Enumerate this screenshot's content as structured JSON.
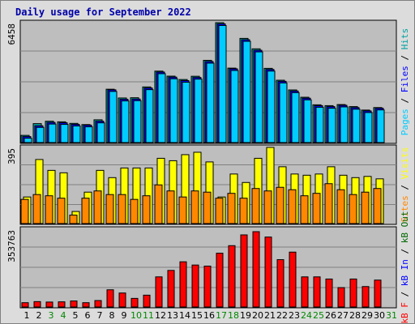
{
  "colors": {
    "title": "#0000aa",
    "panel_bg": "#bebebe",
    "grid": "#808080",
    "pages": "#00ccff",
    "files": "#0000ff",
    "hits": "#00a0a0",
    "sites": "#ff8800",
    "visits": "#ffff00",
    "kbf": "#ff0000",
    "kbin": "#0000ff",
    "kbout": "#006600",
    "weekend": "#008800",
    "weekday": "#000000"
  },
  "chart_data": {
    "type": "bar",
    "title": "Daily usage for September 2022",
    "categories": [
      "1",
      "2",
      "3",
      "4",
      "5",
      "6",
      "7",
      "8",
      "9",
      "10",
      "11",
      "12",
      "13",
      "14",
      "15",
      "16",
      "17",
      "18",
      "19",
      "20",
      "21",
      "22",
      "23",
      "24",
      "25",
      "26",
      "27",
      "28",
      "29",
      "30",
      "31"
    ],
    "weekend_days": [
      "3",
      "4",
      "10",
      "11",
      "17",
      "18",
      "24",
      "25",
      "31"
    ],
    "panels": [
      {
        "id": "top",
        "max_label": "6458",
        "max_value": 6458,
        "right_label": {
          "pages": "Pages",
          "sep1": " / ",
          "files": "Files",
          "sep2": " / ",
          "hits": "Hits"
        },
        "series": [
          {
            "name": "Hits",
            "values": [
              600,
              1580,
              1780,
              1730,
              1600,
              1500,
              1900,
              4450,
              3720,
              3740,
              4640,
              5960,
              5540,
              5260,
              5530,
              6860,
              10000,
              6210,
              8690,
              7820,
              6190,
              5200,
              4390,
              3780,
              3150,
              3080,
              3170,
              3000,
              2710,
              2920,
              0
            ]
          },
          {
            "name": "Files",
            "values": [
              500,
              1400,
              1680,
              1650,
              1520,
              1450,
              1780,
              4400,
              3610,
              3630,
              4550,
              5880,
              5460,
              5170,
              5430,
              6760,
              9900,
              6150,
              8580,
              7700,
              6100,
              5110,
              4300,
              3700,
              3080,
              3000,
              3110,
              2920,
              2640,
              2860,
              0
            ]
          },
          {
            "name": "Pages",
            "values": [
              500,
              1400,
              1680,
              1650,
              1520,
              1450,
              1780,
              4400,
              3610,
              3630,
              4550,
              5880,
              5460,
              5170,
              5430,
              6760,
              9900,
              6150,
              8580,
              7700,
              6100,
              5110,
              4300,
              3700,
              3080,
              3000,
              3110,
              2920,
              2640,
              2860,
              0
            ]
          }
        ]
      },
      {
        "id": "middle",
        "max_label": "395",
        "max_value": 395,
        "right_label": {
          "visits": "Visits",
          "sep1": " / ",
          "sites": "Sites"
        },
        "series": [
          {
            "name": "Visits",
            "values": [
              220,
              530,
              440,
              420,
              100,
              260,
              440,
              380,
              460,
              460,
              460,
              540,
              520,
              570,
              590,
              510,
              220,
              410,
              340,
              540,
              630,
              470,
              410,
              400,
              410,
              470,
              400,
              380,
              390,
              370,
              0
            ]
          },
          {
            "name": "Sites",
            "values": [
              200,
              240,
              230,
              210,
              70,
              210,
              270,
              240,
              240,
              200,
              230,
              320,
              270,
              220,
              270,
              260,
              210,
              250,
              210,
              290,
              270,
              300,
              280,
              230,
              250,
              330,
              280,
              240,
              260,
              290,
              0
            ]
          }
        ]
      },
      {
        "id": "bottom",
        "max_label": "353763",
        "max_value": 353763,
        "right_label": {
          "kbf": "kB F",
          "sep1": " / ",
          "kbin": "kB In",
          "sep2": " / ",
          "kbout": "kB Out"
        },
        "series": [
          {
            "name": "kB F",
            "values": [
              20000,
              25000,
              23000,
              24000,
              28000,
              20000,
              30000,
              80000,
              65000,
              40000,
              55000,
              140000,
              170000,
              210000,
              195000,
              190000,
              250000,
              285000,
              335000,
              350000,
              325000,
              220000,
              255000,
              140000,
              140000,
              130000,
              90000,
              130000,
              95000,
              125000,
              0
            ]
          }
        ]
      }
    ]
  }
}
